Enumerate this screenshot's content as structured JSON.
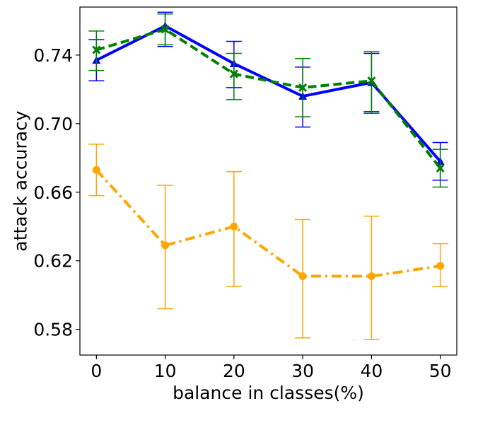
{
  "chart_data": {
    "type": "line",
    "title": "",
    "xlabel": "balance in classes(%)",
    "ylabel": "attack accuracy",
    "x": [
      0,
      10,
      20,
      30,
      40,
      50
    ],
    "xticks": [
      "0",
      "10",
      "20",
      "30",
      "40",
      "50"
    ],
    "yticks": [
      "0.58",
      "0.62",
      "0.66",
      "0.70",
      "0.74"
    ],
    "ytick_values": [
      0.58,
      0.62,
      0.66,
      0.7,
      0.74
    ],
    "xlim": [
      -2.4,
      52.4
    ],
    "ylim": [
      0.565,
      0.768
    ],
    "grid": false,
    "legend": "none",
    "series": [
      {
        "color": "#0000ff",
        "linestyle": "solid",
        "marker": "triangle",
        "values": [
          0.737,
          0.757,
          0.735,
          0.716,
          0.724,
          0.678
        ],
        "err_low": [
          0.725,
          0.745,
          0.721,
          0.698,
          0.707,
          0.667
        ],
        "err_high": [
          0.749,
          0.765,
          0.748,
          0.733,
          0.741,
          0.689
        ]
      },
      {
        "color": "#008000",
        "linestyle": "dashed",
        "marker": "x",
        "values": [
          0.743,
          0.755,
          0.729,
          0.721,
          0.725,
          0.674
        ],
        "err_low": [
          0.731,
          0.746,
          0.714,
          0.704,
          0.706,
          0.663
        ],
        "err_high": [
          0.754,
          0.764,
          0.741,
          0.738,
          0.742,
          0.685
        ]
      },
      {
        "color": "#ffa500",
        "linestyle": "dashdot",
        "marker": "circle",
        "values": [
          0.673,
          0.629,
          0.64,
          0.611,
          0.611,
          0.617
        ],
        "err_low": [
          0.658,
          0.592,
          0.605,
          0.575,
          0.574,
          0.605
        ],
        "err_high": [
          0.688,
          0.664,
          0.672,
          0.644,
          0.646,
          0.63
        ]
      }
    ]
  }
}
